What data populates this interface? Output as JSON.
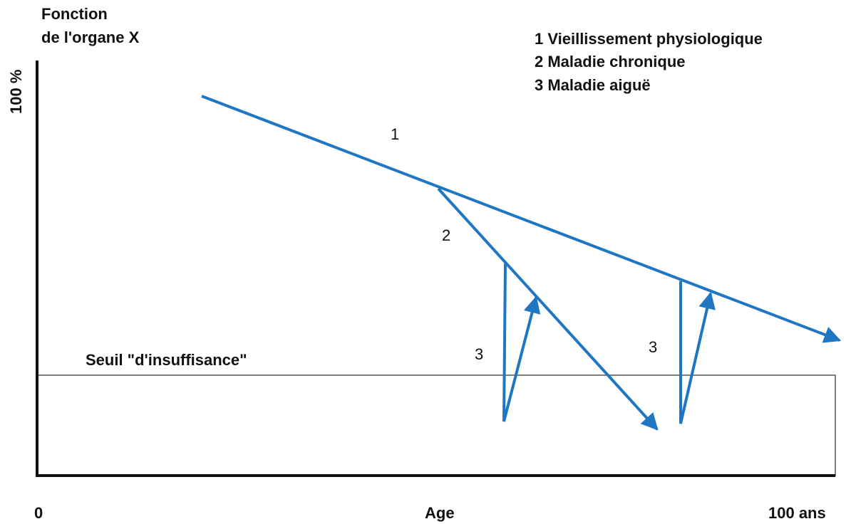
{
  "y_axis": {
    "title_line1": "Fonction",
    "title_line2": "de l'organe X",
    "top_label": "100 %"
  },
  "x_axis": {
    "start_label": "0",
    "title": "Age",
    "end_label": "100 ans"
  },
  "legend": [
    "1 Vieillissement physiologique",
    "2 Maladie chronique",
    "3 Maladie aiguë"
  ],
  "curve_labels": [
    "1",
    "2",
    "3",
    "3"
  ],
  "threshold_label": "Seuil \"d'insuffisance\""
}
